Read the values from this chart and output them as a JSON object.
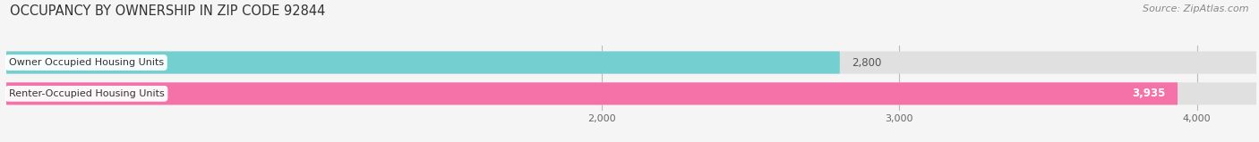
{
  "title": "OCCUPANCY BY OWNERSHIP IN ZIP CODE 92844",
  "source": "Source: ZipAtlas.com",
  "categories": [
    "Owner Occupied Housing Units",
    "Renter-Occupied Housing Units"
  ],
  "values": [
    2800,
    3935
  ],
  "bar_colors": [
    "#74d0d0",
    "#f472a8"
  ],
  "xlim": [
    0,
    4200
  ],
  "xticks": [
    2000,
    3000,
    4000
  ],
  "xtick_labels": [
    "2,000",
    "3,000",
    "4,000"
  ],
  "value_labels": [
    "2,800",
    "3,935"
  ],
  "bar_height": 0.72,
  "background_color": "#f5f5f5",
  "bar_background": "#e0e0e0",
  "title_fontsize": 10.5,
  "source_fontsize": 8,
  "label_fontsize": 8,
  "value_fontsize": 8.5
}
